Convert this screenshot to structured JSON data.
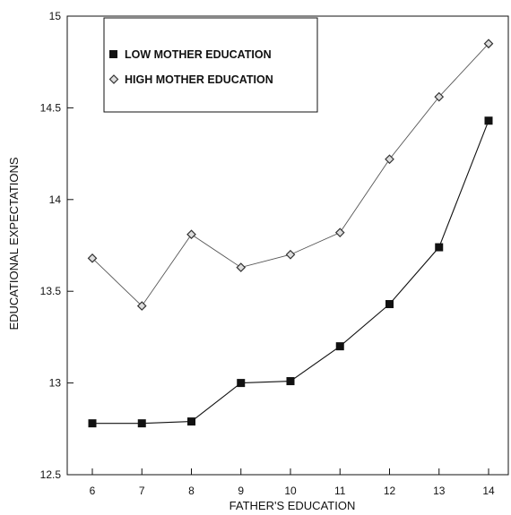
{
  "chart_data": {
    "type": "line",
    "xlabel": "FATHER'S EDUCATION",
    "ylabel": "EDUCATIONAL EXPECTATIONS",
    "x": [
      6,
      7,
      8,
      9,
      10,
      11,
      12,
      13,
      14
    ],
    "xlim": [
      6,
      14
    ],
    "ylim": [
      12.5,
      15
    ],
    "x_ticks": [
      "6",
      "7",
      "8",
      "9",
      "10",
      "11",
      "12",
      "13",
      "14"
    ],
    "y_ticks": [
      "12.5",
      "13",
      "13.5",
      "14",
      "14.5",
      "15"
    ],
    "y_tick_values": [
      12.5,
      13,
      13.5,
      14,
      14.5,
      15
    ],
    "grid": false,
    "legend_position": "top-left",
    "series": [
      {
        "name": "LOW MOTHER EDUCATION",
        "marker": "square",
        "color": "#111111",
        "values": [
          12.78,
          12.78,
          12.79,
          13.0,
          13.01,
          13.2,
          13.43,
          13.74,
          14.43
        ]
      },
      {
        "name": "HIGH MOTHER EDUCATION",
        "marker": "diamond",
        "color": "#444444",
        "values": [
          13.68,
          13.42,
          13.81,
          13.63,
          13.7,
          13.82,
          14.22,
          14.56,
          14.85
        ]
      }
    ]
  }
}
